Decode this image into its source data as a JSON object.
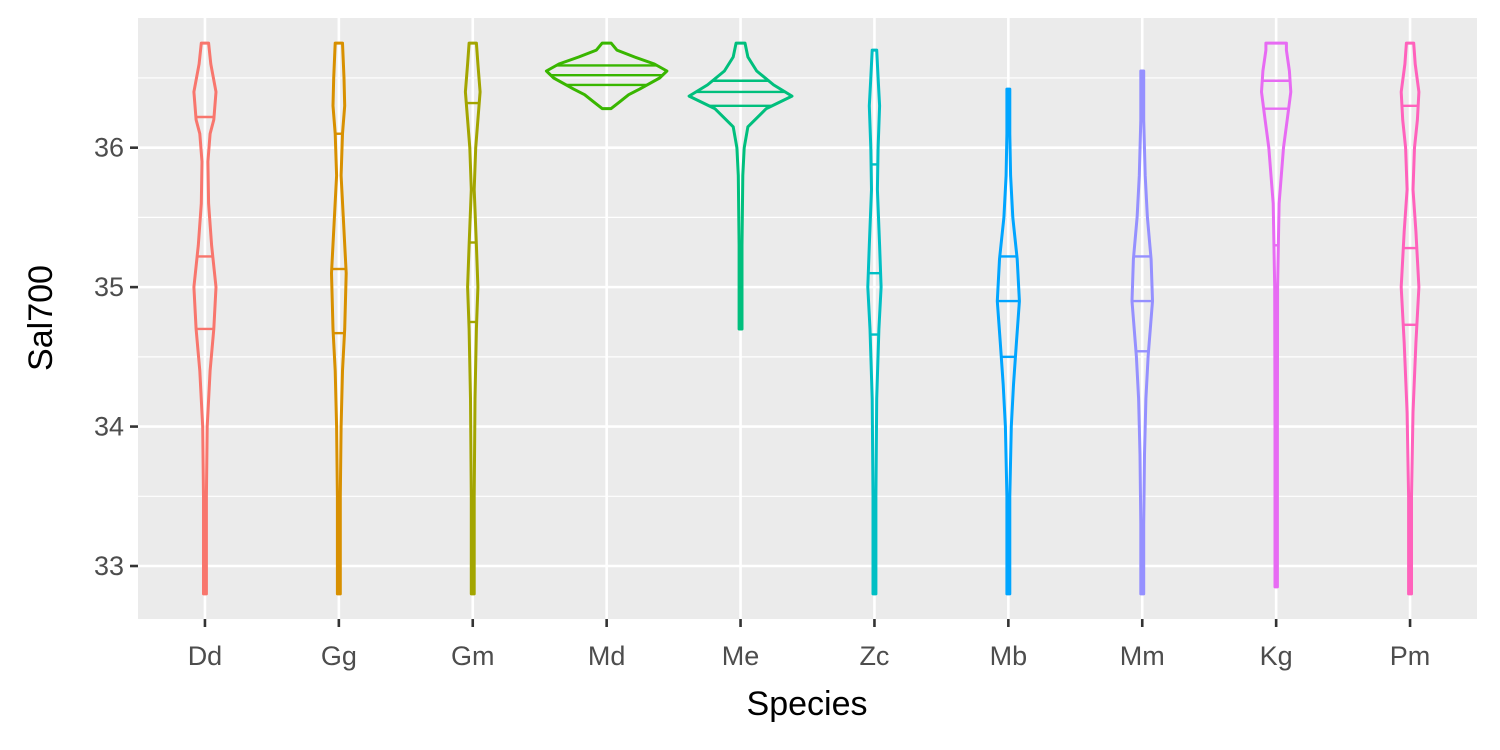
{
  "chart_data": {
    "type": "violin",
    "title": "",
    "xlabel": "Species",
    "ylabel": "Sal700",
    "ylim": [
      32.62,
      36.93
    ],
    "y_ticks": [
      33,
      34,
      35,
      36
    ],
    "y_tick_labels": [
      "33",
      "34",
      "35",
      "36"
    ],
    "grid": true,
    "legend": "none",
    "quantiles_drawn": [
      0.25,
      0.5,
      0.75
    ],
    "categories": [
      "Dd",
      "Gg",
      "Gm",
      "Md",
      "Me",
      "Zc",
      "Mb",
      "Mm",
      "Kg",
      "Pm"
    ],
    "series": [
      {
        "category": "Dd",
        "color": "#F8766D",
        "min": 32.8,
        "max": 36.75,
        "q1": 34.7,
        "median": 35.22,
        "q3": 36.22,
        "density": [
          [
            32.8,
            0.02
          ],
          [
            33.5,
            0.02
          ],
          [
            34.0,
            0.03
          ],
          [
            34.4,
            0.07
          ],
          [
            34.7,
            0.12
          ],
          [
            35.0,
            0.15
          ],
          [
            35.3,
            0.09
          ],
          [
            35.6,
            0.05
          ],
          [
            35.9,
            0.04
          ],
          [
            36.1,
            0.07
          ],
          [
            36.2,
            0.12
          ],
          [
            36.4,
            0.15
          ],
          [
            36.6,
            0.08
          ],
          [
            36.75,
            0.05
          ]
        ]
      },
      {
        "category": "Gg",
        "color": "#D89000",
        "min": 32.8,
        "max": 36.75,
        "q1": 34.67,
        "median": 35.13,
        "q3": 36.1,
        "density": [
          [
            32.8,
            0.02
          ],
          [
            33.5,
            0.02
          ],
          [
            34.0,
            0.03
          ],
          [
            34.4,
            0.05
          ],
          [
            34.7,
            0.08
          ],
          [
            35.1,
            0.1
          ],
          [
            35.5,
            0.06
          ],
          [
            35.8,
            0.03
          ],
          [
            36.1,
            0.05
          ],
          [
            36.3,
            0.08
          ],
          [
            36.5,
            0.07
          ],
          [
            36.75,
            0.05
          ]
        ]
      },
      {
        "category": "Gm",
        "color": "#A3A500",
        "min": 32.8,
        "max": 36.75,
        "q1": 34.75,
        "median": 35.32,
        "q3": 36.32,
        "density": [
          [
            32.8,
            0.02
          ],
          [
            33.5,
            0.02
          ],
          [
            34.2,
            0.03
          ],
          [
            34.7,
            0.05
          ],
          [
            35.0,
            0.07
          ],
          [
            35.3,
            0.05
          ],
          [
            35.7,
            0.02
          ],
          [
            36.0,
            0.04
          ],
          [
            36.2,
            0.07
          ],
          [
            36.4,
            0.1
          ],
          [
            36.6,
            0.07
          ],
          [
            36.75,
            0.05
          ]
        ]
      },
      {
        "category": "Md",
        "color": "#39B600",
        "min": 36.28,
        "max": 36.75,
        "q1": 36.45,
        "median": 36.52,
        "q3": 36.59,
        "density": [
          [
            36.28,
            0.06
          ],
          [
            36.33,
            0.18
          ],
          [
            36.38,
            0.3
          ],
          [
            36.42,
            0.45
          ],
          [
            36.45,
            0.55
          ],
          [
            36.5,
            0.72
          ],
          [
            36.55,
            0.82
          ],
          [
            36.6,
            0.65
          ],
          [
            36.65,
            0.38
          ],
          [
            36.7,
            0.14
          ],
          [
            36.75,
            0.06
          ]
        ]
      },
      {
        "category": "Me",
        "color": "#00BF7D",
        "min": 34.7,
        "max": 36.75,
        "q1": 36.3,
        "median": 36.4,
        "q3": 36.48,
        "density": [
          [
            34.7,
            0.02
          ],
          [
            35.3,
            0.02
          ],
          [
            35.8,
            0.03
          ],
          [
            36.0,
            0.05
          ],
          [
            36.15,
            0.1
          ],
          [
            36.28,
            0.35
          ],
          [
            36.37,
            0.7
          ],
          [
            36.45,
            0.45
          ],
          [
            36.55,
            0.22
          ],
          [
            36.65,
            0.1
          ],
          [
            36.75,
            0.06
          ]
        ]
      },
      {
        "category": "Zc",
        "color": "#00BFC4",
        "min": 32.8,
        "max": 36.7,
        "q1": 34.66,
        "median": 35.1,
        "q3": 35.88,
        "density": [
          [
            32.8,
            0.02
          ],
          [
            33.5,
            0.02
          ],
          [
            34.2,
            0.03
          ],
          [
            34.7,
            0.06
          ],
          [
            35.0,
            0.09
          ],
          [
            35.3,
            0.07
          ],
          [
            35.7,
            0.04
          ],
          [
            36.0,
            0.05
          ],
          [
            36.3,
            0.07
          ],
          [
            36.5,
            0.05
          ],
          [
            36.7,
            0.03
          ]
        ]
      },
      {
        "category": "Mb",
        "color": "#00A5FF",
        "min": 32.8,
        "max": 36.42,
        "q1": 34.5,
        "median": 34.9,
        "q3": 35.22,
        "density": [
          [
            32.8,
            0.02
          ],
          [
            33.5,
            0.02
          ],
          [
            34.0,
            0.04
          ],
          [
            34.3,
            0.07
          ],
          [
            34.6,
            0.11
          ],
          [
            34.9,
            0.15
          ],
          [
            35.2,
            0.12
          ],
          [
            35.5,
            0.06
          ],
          [
            35.8,
            0.03
          ],
          [
            36.1,
            0.02
          ],
          [
            36.42,
            0.02
          ]
        ]
      },
      {
        "category": "Mm",
        "color": "#9590FF",
        "min": 32.8,
        "max": 36.55,
        "q1": 34.54,
        "median": 34.9,
        "q3": 35.22,
        "density": [
          [
            32.8,
            0.02
          ],
          [
            33.3,
            0.02
          ],
          [
            33.8,
            0.03
          ],
          [
            34.2,
            0.05
          ],
          [
            34.5,
            0.08
          ],
          [
            34.9,
            0.14
          ],
          [
            35.2,
            0.12
          ],
          [
            35.5,
            0.07
          ],
          [
            35.8,
            0.04
          ],
          [
            36.2,
            0.02
          ],
          [
            36.55,
            0.02
          ]
        ]
      },
      {
        "category": "Kg",
        "color": "#E76BF3",
        "min": 32.85,
        "max": 36.75,
        "q1": 35.3,
        "median": 36.28,
        "q3": 36.48,
        "density": [
          [
            32.85,
            0.01
          ],
          [
            34.0,
            0.01
          ],
          [
            35.0,
            0.02
          ],
          [
            35.6,
            0.04
          ],
          [
            36.0,
            0.1
          ],
          [
            36.2,
            0.15
          ],
          [
            36.4,
            0.2
          ],
          [
            36.55,
            0.18
          ],
          [
            36.7,
            0.14
          ],
          [
            36.75,
            0.14
          ]
        ]
      },
      {
        "category": "Pm",
        "color": "#FF62BC",
        "min": 32.8,
        "max": 36.75,
        "q1": 34.73,
        "median": 35.28,
        "q3": 36.3,
        "density": [
          [
            32.8,
            0.02
          ],
          [
            33.5,
            0.02
          ],
          [
            34.1,
            0.04
          ],
          [
            34.6,
            0.08
          ],
          [
            35.0,
            0.12
          ],
          [
            35.4,
            0.08
          ],
          [
            35.7,
            0.04
          ],
          [
            36.0,
            0.06
          ],
          [
            36.2,
            0.1
          ],
          [
            36.4,
            0.12
          ],
          [
            36.6,
            0.07
          ],
          [
            36.75,
            0.05
          ]
        ]
      }
    ]
  }
}
